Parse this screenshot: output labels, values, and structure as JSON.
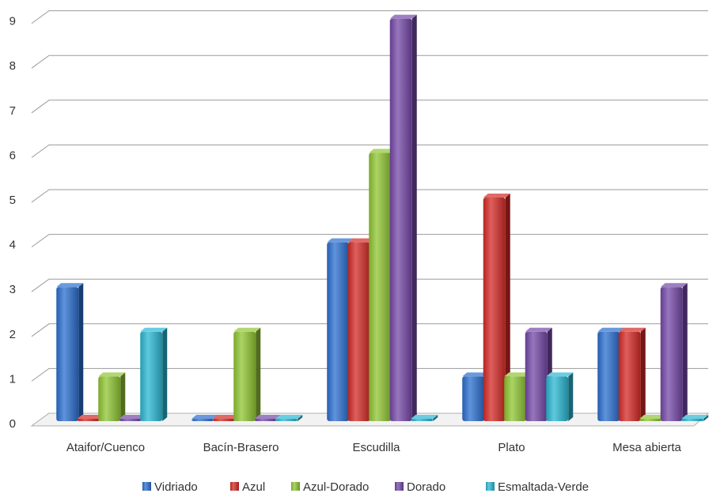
{
  "chart_data": {
    "type": "bar",
    "categories": [
      "Ataifor/Cuenco",
      "Bacín-Brasero",
      "Escudilla",
      "Plato",
      "Mesa abierta"
    ],
    "series": [
      {
        "name": "Vidriado",
        "values": [
          3,
          0,
          4,
          1,
          2
        ],
        "color": "#2a6fcf"
      },
      {
        "name": "Azul",
        "values": [
          0,
          0,
          4,
          5,
          2
        ],
        "color": "#d42a26"
      },
      {
        "name": "Azul-Dorado",
        "values": [
          1,
          2,
          6,
          1,
          0
        ],
        "color": "#8fc632"
      },
      {
        "name": "Dorado",
        "values": [
          0,
          0,
          9,
          2,
          3
        ],
        "color": "#7448a8"
      },
      {
        "name": "Esmaltada-Verde",
        "values": [
          2,
          0,
          0,
          1,
          0
        ],
        "color": "#2ab7d3"
      }
    ],
    "yticks": [
      "0",
      "1",
      "2",
      "3",
      "4",
      "5",
      "6",
      "7",
      "8",
      "9"
    ],
    "ylim": [
      0,
      9
    ],
    "grid": true,
    "legend_position": "bottom",
    "title": "",
    "xlabel": "",
    "ylabel": ""
  }
}
